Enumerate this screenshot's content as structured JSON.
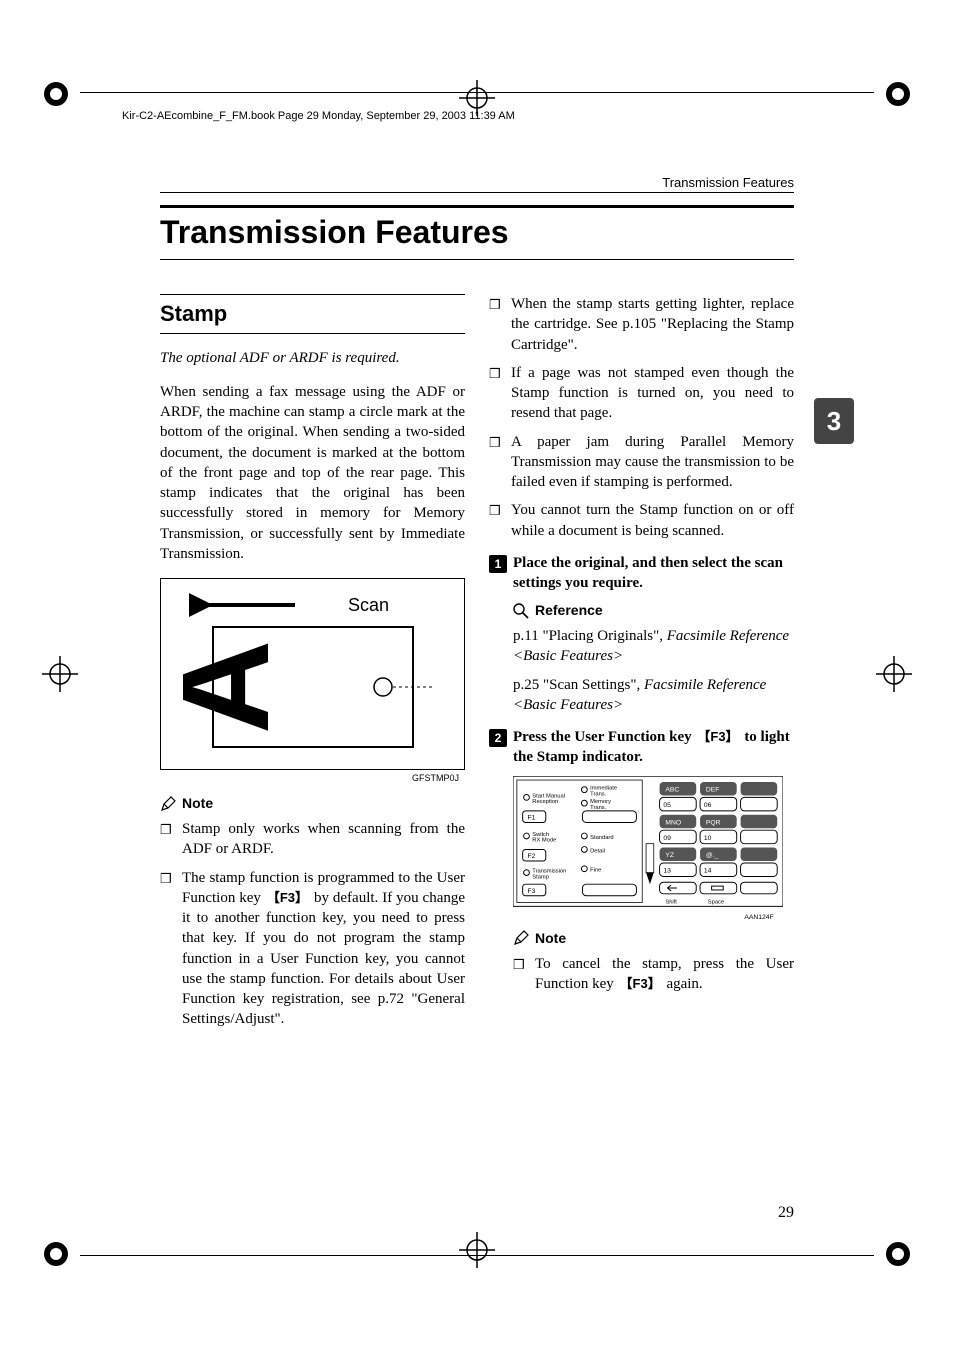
{
  "book_header": "Kir-C2-AEcombine_F_FM.book  Page 29  Monday, September 29, 2003  11:39 AM",
  "running_head": "Transmission Features",
  "h1": "Transmission Features",
  "chapter_tab": "3",
  "page_number": "29",
  "left": {
    "h2": "Stamp",
    "requirement": "The optional ADF or ARDF is required.",
    "body": "When sending a fax message using the ADF or ARDF, the machine can stamp a circle mark at the bottom of the original. When sending a two-sided document, the document is marked at the bottom of the front page and top of the rear page. This stamp indicates that the original has been successfully stored in memory for Memory Transmission, or successfully sent by Immediate Transmission.",
    "scan_label": "Scan",
    "fig_code": "GFSTMP0J",
    "note_label": "Note",
    "notes": [
      "Stamp only works when scanning from the ADF or ARDF.",
      "The stamp function is programmed to the User Function key {F3} by default. If you change it to another function key, you need to press that key. If you do not program the stamp function in a User Function key, you cannot use the stamp function. For details about User Function key registration, see p.72 \"General Settings/Adjust\"."
    ]
  },
  "right": {
    "bullets": [
      "When the stamp starts getting lighter, replace the cartridge. See p.105 \"Replacing the Stamp Cartridge\".",
      "If a page was not stamped even though the Stamp function is turned on, you need to resend that page.",
      "A paper jam during Parallel Memory Transmission may cause the transmission to be failed even if stamping is performed.",
      "You cannot turn the Stamp function on or off while a document is being scanned."
    ],
    "step1": "Place the original, and then select the scan settings you require.",
    "reference_label": "Reference",
    "ref1a": "p.11 \"Placing Originals\", ",
    "ref1b": "Facsimile Reference <Basic Features>",
    "ref2a": "p.25 \"Scan Settings\", ",
    "ref2b": "Facsimile Reference <Basic Features>",
    "step2_pre": "Press the User Function key ",
    "step2_key": "F3",
    "step2_post": " to light the Stamp indicator.",
    "panel": {
      "code": "AAN124F",
      "left_labels": [
        "Start Manual Reception",
        "Switch RX Mode",
        "Transmission Stamp"
      ],
      "mid_labels": [
        "Immediate Trans.",
        "Memory Trans.",
        "Standard",
        "Detail",
        "Fine"
      ],
      "f_keys": [
        "F1",
        "F2",
        "F3"
      ],
      "key_rows": [
        [
          "ABC",
          "DEF",
          ""
        ],
        [
          "05",
          "06",
          ""
        ],
        [
          "MNO",
          "PQR",
          ""
        ],
        [
          "09",
          "10",
          ""
        ],
        [
          "YZ",
          "@._",
          ""
        ],
        [
          "13",
          "14",
          ""
        ]
      ],
      "bottom_keys": [
        "Shift",
        "Space"
      ]
    },
    "note_label": "Note",
    "note_cancel_pre": "To cancel the stamp, press the User Function key ",
    "note_cancel_key": "F3",
    "note_cancel_post": " again."
  }
}
